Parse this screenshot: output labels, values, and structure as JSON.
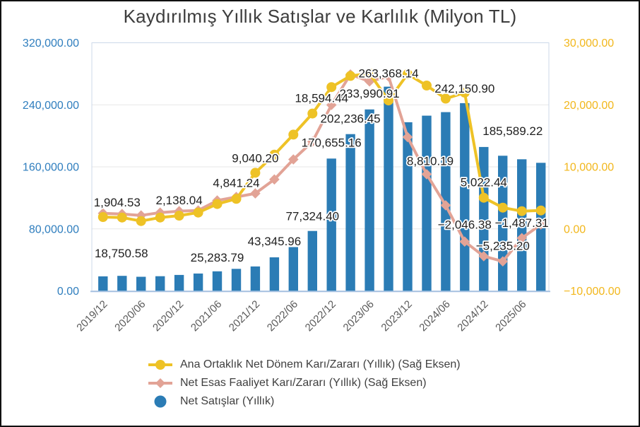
{
  "title": "Kaydırılmış Yıllık Satışlar ve Karlılık (Milyon TL)",
  "legend": {
    "items": [
      {
        "label": "Ana Ortaklık Net Dönem Karı/Zararı (Yıllık) (Sağ Eksen)",
        "marker": "line-circle",
        "color": "#eec226"
      },
      {
        "label": "Net Esas Faaliyet Karı/Zararı (Yıllık) (Sağ Eksen)",
        "marker": "line-diamond",
        "color": "#e2a396"
      },
      {
        "label": "Net Satışlar (Yıllık)",
        "marker": "circle",
        "color": "#2b7cb5"
      }
    ]
  },
  "chart_data": {
    "type": "combo",
    "x": [
      "2019/12",
      "2020/03",
      "2020/06",
      "2020/09",
      "2020/12",
      "2021/03",
      "2021/06",
      "2021/09",
      "2021/12",
      "2022/03",
      "2022/06",
      "2022/09",
      "2022/12",
      "2023/03",
      "2023/06",
      "2023/09",
      "2023/12",
      "2024/03",
      "2024/06",
      "2024/09",
      "2024/12",
      "2025/03",
      "2025/06",
      "2025/09"
    ],
    "x_axis": {
      "tick_labels": [
        "2019/12",
        "2020/06",
        "2020/12",
        "2021/06",
        "2021/12",
        "2022/06",
        "2022/12",
        "2023/06",
        "2023/12",
        "2024/06",
        "2024/12",
        "2025/06"
      ],
      "tick_every": 2,
      "color": "#595959"
    },
    "left_axis": {
      "min": 0,
      "max": 320000,
      "tick_labels": [
        "320,000.00",
        "240,000.00",
        "160,000.00",
        "80,000.00",
        "0.00"
      ],
      "color": "#2f7ebe"
    },
    "right_axis": {
      "min": -10000,
      "max": 30000,
      "tick_labels": [
        "30,000.00",
        "20,000.00",
        "10,000.00",
        "0.00",
        "−10,000.00"
      ],
      "color": "#f2b71c"
    },
    "grid": true,
    "legend_position": "bottom",
    "series": [
      {
        "key": "net-satislar",
        "name": "Net Satışlar (Yıllık)",
        "type": "bar",
        "axis": "left",
        "color": "#2b7cb5",
        "values": [
          18750.58,
          19400,
          18200,
          19000,
          20600,
          22400,
          25283.79,
          28400,
          31500,
          43345.96,
          56500,
          77324.4,
          170655.16,
          202236.45,
          233990.91,
          263368.14,
          217500,
          226000,
          230600,
          242150.9,
          185589.22,
          174300,
          169800,
          165200
        ],
        "point_labels": {
          "0": "18,750.58",
          "6": "25,283.79",
          "9": "43,345.96",
          "11": "77,324.40",
          "12": "170,655.16",
          "13": "202,236.45",
          "14": "233,990.91",
          "15": "263,368.14",
          "19": "242,150.90",
          "20": "185,589.22"
        }
      },
      {
        "key": "net-esas-faaliyet",
        "name": "Net Esas Faaliyet Karı/Zararı (Yıllık) (Sağ Eksen)",
        "type": "line",
        "marker": "diamond",
        "axis": "right",
        "color": "#e2a396",
        "values": [
          2510,
          2400,
          2170,
          2630,
          2860,
          2970,
          4570,
          5140,
          5710,
          7970,
          11200,
          14060,
          19970,
          24900,
          23770,
          24570,
          14800,
          8810.19,
          3800,
          -2046.38,
          -4400,
          -5235.2,
          -1487.31,
          700
        ],
        "point_labels": {
          "17": "8,810.19",
          "19": "−2,046.38",
          "21": "−5,235.20",
          "22": "−1,487.31"
        }
      },
      {
        "key": "ana-ortaklik-net-donem",
        "name": "Ana Ortaklık Net Dönem Karı/Zararı (Yıllık) (Sağ Eksen)",
        "type": "line",
        "marker": "circle",
        "axis": "right",
        "color": "#eec226",
        "values": [
          1904.53,
          1830,
          1260,
          1830,
          2138.04,
          2630,
          4000,
          4841.24,
          9040.2,
          11970,
          15200,
          18594.44,
          22850,
          24650,
          25050,
          20700,
          24950,
          23100,
          21000,
          21950,
          5022.44,
          3430,
          2860,
          2970
        ],
        "point_labels": {
          "0": "1,904.53",
          "4": "2,138.04",
          "7": "4,841.24",
          "8": "9,040.20",
          "11": "18,594.44",
          "20": "5,022.44"
        }
      }
    ]
  }
}
